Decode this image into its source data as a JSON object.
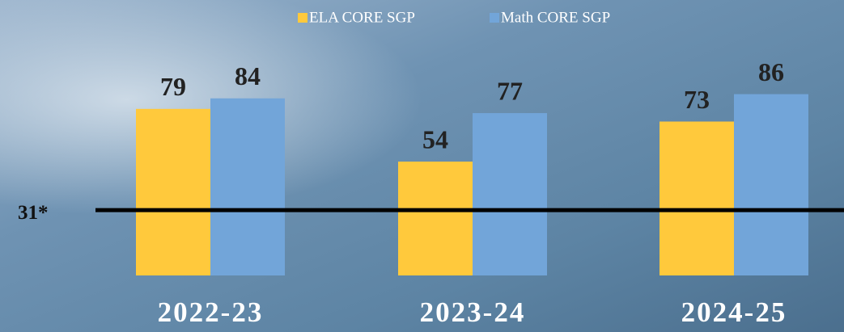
{
  "chart_data": {
    "type": "bar",
    "categories": [
      "2022-23",
      "2023-24",
      "2024-25"
    ],
    "series": [
      {
        "name": "ELA CORE SGP",
        "color": "#FFC93C",
        "values": [
          79,
          54,
          73
        ]
      },
      {
        "name": "Math CORE SGP",
        "color": "#72A5D9",
        "values": [
          84,
          77,
          86
        ]
      }
    ],
    "reference_line": {
      "value": 31,
      "label": "31*"
    },
    "legend": "top"
  }
}
